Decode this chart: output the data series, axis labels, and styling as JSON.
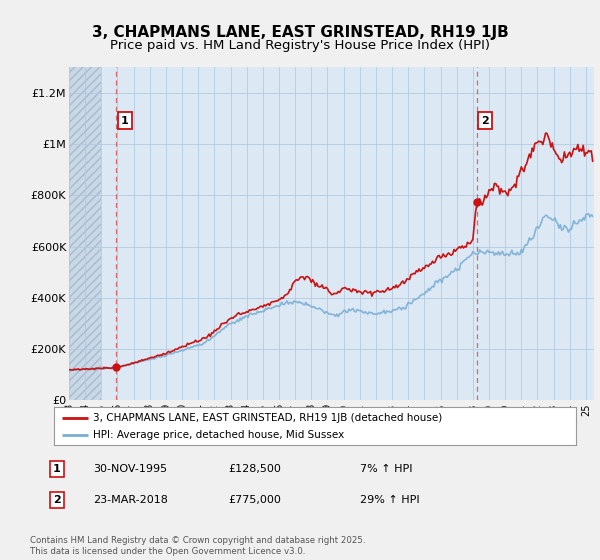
{
  "title": "3, CHAPMANS LANE, EAST GRINSTEAD, RH19 1JB",
  "subtitle": "Price paid vs. HM Land Registry's House Price Index (HPI)",
  "ylim": [
    0,
    1300000
  ],
  "yticks": [
    0,
    200000,
    400000,
    600000,
    800000,
    1000000,
    1200000
  ],
  "ytick_labels": [
    "£0",
    "£200K",
    "£400K",
    "£600K",
    "£800K",
    "£1M",
    "£1.2M"
  ],
  "background_color": "#f0f0f0",
  "plot_bg_color": "#dce9f5",
  "grid_color": "#b8cfe0",
  "hpi_color": "#7aafd4",
  "price_color": "#cc1111",
  "marker1_x": 1995.92,
  "marker1_y": 128500,
  "marker2_x": 2018.23,
  "marker2_y": 775000,
  "vline1_x": 1995.92,
  "vline2_x": 2018.23,
  "annotation1": [
    "1",
    "30-NOV-1995",
    "£128,500",
    "7% ↑ HPI"
  ],
  "annotation2": [
    "2",
    "23-MAR-2018",
    "£775,000",
    "29% ↑ HPI"
  ],
  "legend_line1": "3, CHAPMANS LANE, EAST GRINSTEAD, RH19 1JB (detached house)",
  "legend_line2": "HPI: Average price, detached house, Mid Sussex",
  "footnote": "Contains HM Land Registry data © Crown copyright and database right 2025.\nThis data is licensed under the Open Government Licence v3.0.",
  "title_fontsize": 11,
  "subtitle_fontsize": 9.5,
  "tick_fontsize": 8,
  "xlim": [
    1993.0,
    2025.5
  ],
  "hatch_end_x": 1995.0
}
